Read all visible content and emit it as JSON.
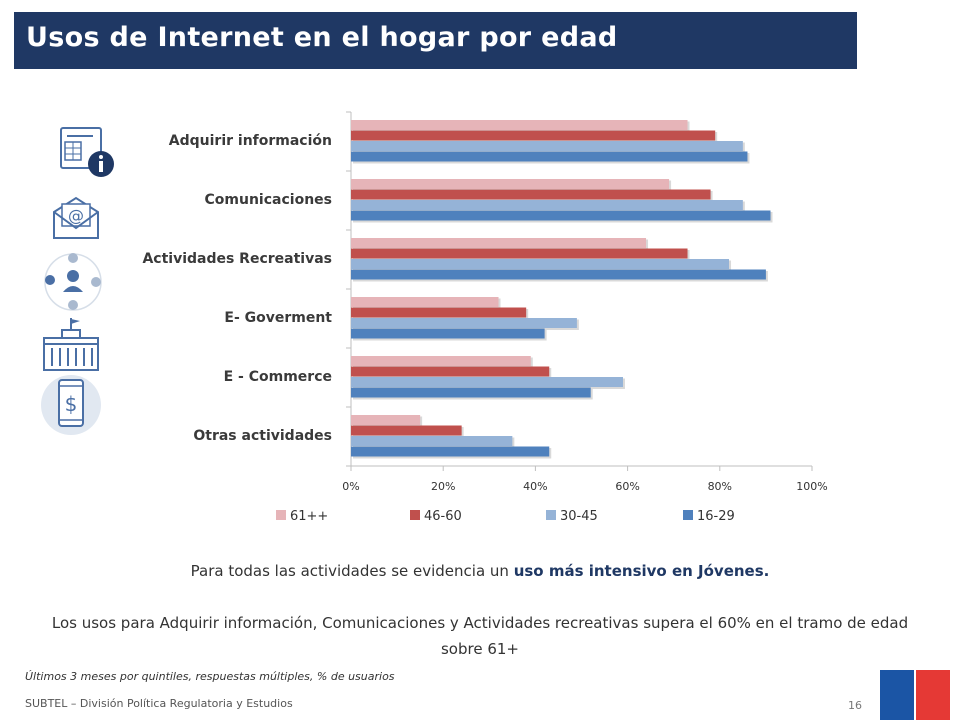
{
  "header": {
    "title": "Usos de Internet en el hogar por edad"
  },
  "chart_data": {
    "type": "bar",
    "orientation": "horizontal",
    "categories": [
      "Adquirir información",
      "Comunicaciones",
      "Actividades Recreativas",
      "E- Goverment",
      "E - Commerce",
      "Otras actividades"
    ],
    "series": [
      {
        "name": "61++",
        "color": "#e6b4b8",
        "values": [
          73,
          69,
          64,
          32,
          39,
          15
        ]
      },
      {
        "name": "46-60",
        "color": "#c0504d",
        "values": [
          79,
          78,
          73,
          38,
          43,
          24
        ]
      },
      {
        "name": "30-45",
        "color": "#95b3d7",
        "values": [
          85,
          85,
          82,
          49,
          59,
          35
        ]
      },
      {
        "name": "16-29",
        "color": "#4f81bd",
        "values": [
          86,
          91,
          90,
          42,
          52,
          43
        ]
      }
    ],
    "xlim": [
      0,
      100
    ],
    "xticks": [
      "0%",
      "20%",
      "40%",
      "60%",
      "80%",
      "100%"
    ],
    "legend_position": "bottom",
    "grid": false
  },
  "notes": {
    "line1_prefix": "Para todas las actividades se evidencia un ",
    "line1_bold": "uso más intensivo en Jóvenes.",
    "line2": "Los usos para Adquirir información, Comunicaciones y Actividades recreativas supera el 60% en el tramo de edad sobre 61+"
  },
  "footnote": "Últimos 3 meses por quintiles, respuestas múltiples, % de usuarios",
  "footer": {
    "text": "SUBTEL – División Política Regulatoria y Estudios",
    "page": "16"
  },
  "icons": [
    "document-info-icon",
    "email-envelope-icon",
    "social-network-icon",
    "government-building-icon",
    "mobile-dollar-icon"
  ]
}
